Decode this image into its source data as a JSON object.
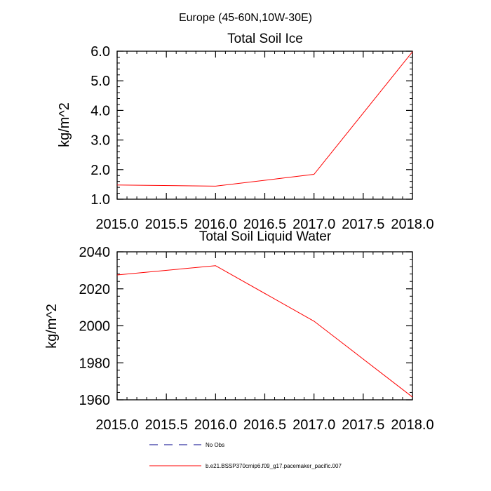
{
  "figure_title": "Europe (45-60N,10W-30E)",
  "chart_data": [
    {
      "type": "line",
      "title": "Total Soil Ice",
      "xlabel": "",
      "ylabel": "kg/m^2",
      "xlim": [
        2015.0,
        2018.0
      ],
      "ylim": [
        1.0,
        6.0
      ],
      "x_ticks": [
        "2015.0",
        "2015.5",
        "2016.0",
        "2016.5",
        "2017.0",
        "2017.5",
        "2018.0"
      ],
      "x_tick_values": [
        2015.0,
        2015.5,
        2016.0,
        2016.5,
        2017.0,
        2017.5,
        2018.0
      ],
      "y_ticks": [
        "1.0",
        "2.0",
        "3.0",
        "4.0",
        "5.0",
        "6.0"
      ],
      "y_tick_values": [
        1.0,
        2.0,
        3.0,
        4.0,
        5.0,
        6.0
      ],
      "series": [
        {
          "name": "b.e21.BSSP370cmip6.f09_g17.pacemaker_pacific.007",
          "color": "#ff0000",
          "x": [
            2015.0,
            2016.0,
            2017.0,
            2018.0
          ],
          "values": [
            1.48,
            1.44,
            1.84,
            5.98
          ]
        }
      ]
    },
    {
      "type": "line",
      "title": "Total Soil Liquid Water",
      "xlabel": "",
      "ylabel": "kg/m^2",
      "xlim": [
        2015.0,
        2018.0
      ],
      "ylim": [
        1960,
        2040
      ],
      "x_ticks": [
        "2015.0",
        "2015.5",
        "2016.0",
        "2016.5",
        "2017.0",
        "2017.5",
        "2018.0"
      ],
      "x_tick_values": [
        2015.0,
        2015.5,
        2016.0,
        2016.5,
        2017.0,
        2017.5,
        2018.0
      ],
      "y_ticks": [
        "1960",
        "1980",
        "2000",
        "2020",
        "2040"
      ],
      "y_tick_values": [
        1960,
        1980,
        2000,
        2020,
        2040
      ],
      "series": [
        {
          "name": "b.e21.BSSP370cmip6.f09_g17.pacemaker_pacific.007",
          "color": "#ff0000",
          "x": [
            2015.0,
            2016.0,
            2017.0,
            2018.0
          ],
          "values": [
            2027.5,
            2032.5,
            2002.5,
            1961.5
          ]
        }
      ]
    }
  ],
  "legend": [
    {
      "label": "No Obs",
      "color": "#00008b",
      "style": "dashed"
    },
    {
      "label": "b.e21.BSSP370cmip6.f09_g17.pacemaker_pacific.007",
      "color": "#ff0000",
      "style": "solid"
    }
  ]
}
